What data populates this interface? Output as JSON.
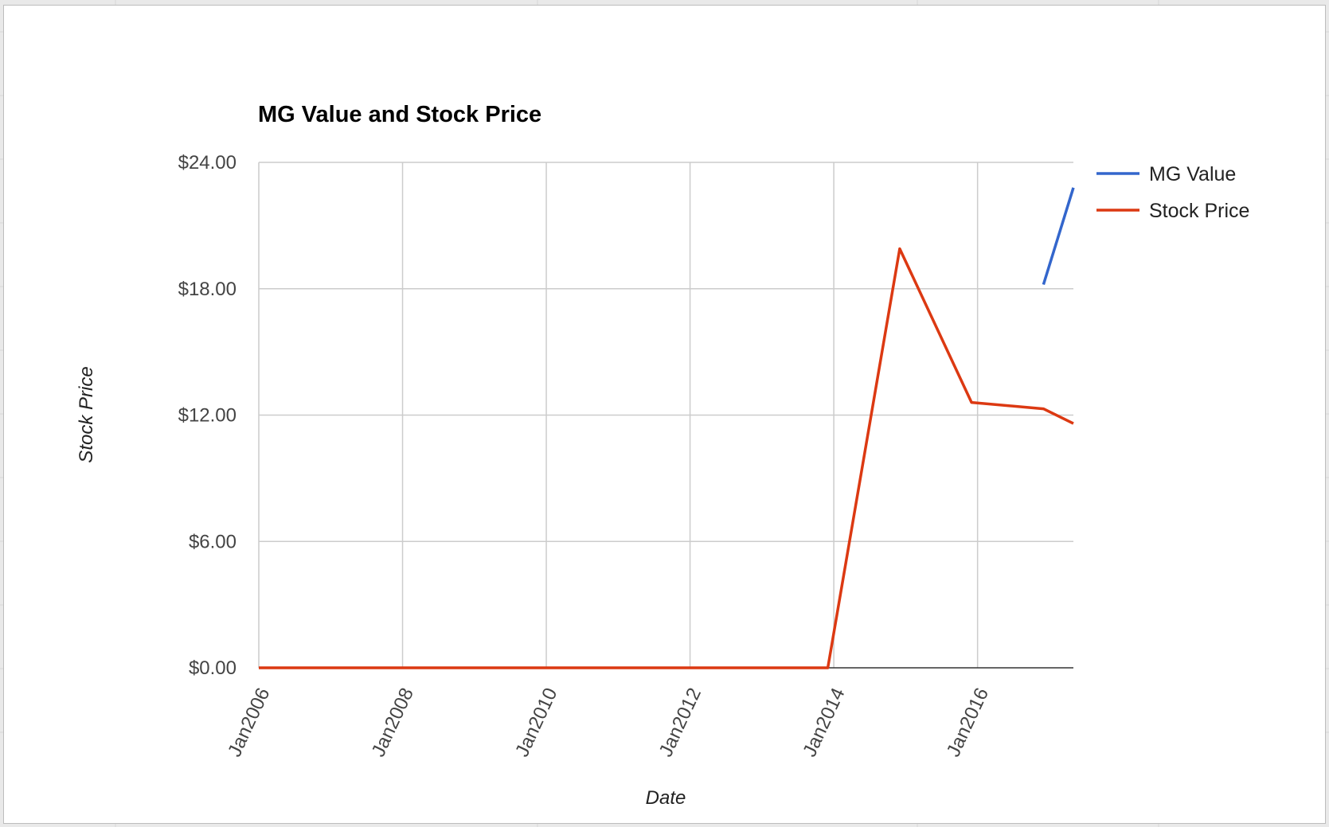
{
  "chart_data": {
    "type": "line",
    "title": "MG Value and Stock Price",
    "xlabel": "Date",
    "ylabel": "Stock Price",
    "x_tick_labels": [
      "Jan2006",
      "Jan2008",
      "Jan2010",
      "Jan2012",
      "Jan2014",
      "Jan2016"
    ],
    "y_tick_labels": [
      "$0.00",
      "$6.00",
      "$12.00",
      "$18.00",
      "$24.00"
    ],
    "ylim": [
      0,
      24
    ],
    "xlim": [
      "2006-01",
      "2017-05"
    ],
    "grid": true,
    "legend_position": "right",
    "series": [
      {
        "name": "MG Value",
        "color": "#3366cc",
        "points": [
          [
            "2016-12",
            18.2
          ],
          [
            "2017-05",
            22.8
          ]
        ]
      },
      {
        "name": "Stock Price",
        "color": "#dc3912",
        "points": [
          [
            "2006-01",
            0
          ],
          [
            "2013-12",
            0
          ],
          [
            "2014-12",
            19.9
          ],
          [
            "2015-12",
            12.6
          ],
          [
            "2016-12",
            12.3
          ],
          [
            "2017-05",
            11.6
          ]
        ]
      }
    ]
  }
}
